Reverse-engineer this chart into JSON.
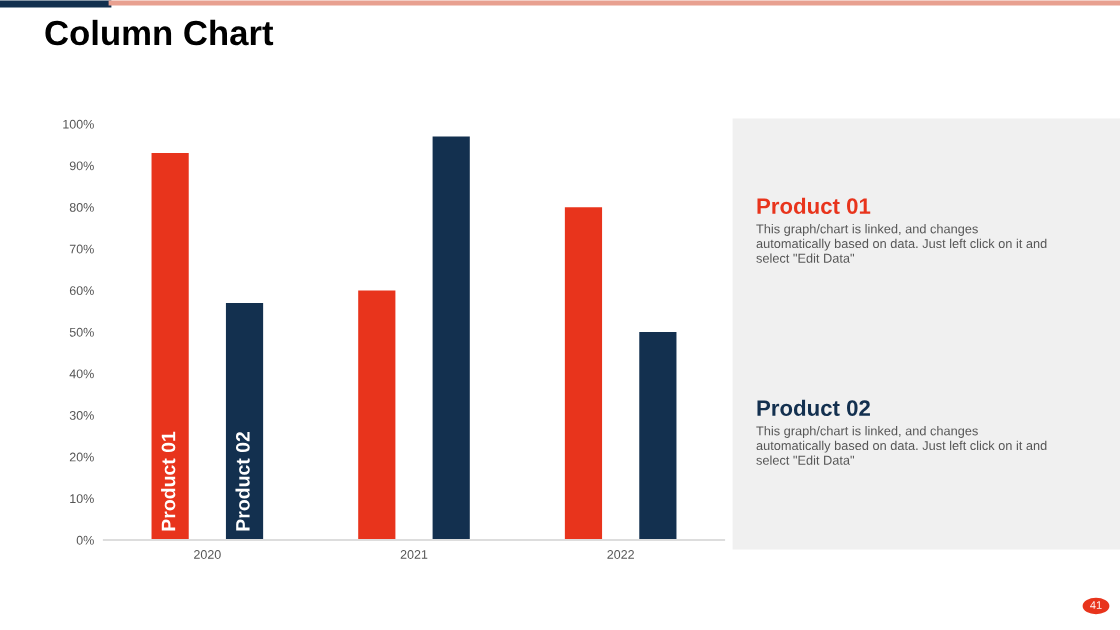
{
  "chart_data": {
    "type": "bar",
    "title": "Column Chart",
    "categories": [
      "2020",
      "2021",
      "2022"
    ],
    "series": [
      {
        "name": "Product 01",
        "color": "#e8341c",
        "values": [
          93,
          60,
          80
        ]
      },
      {
        "name": "Product 02",
        "color": "#13304f",
        "values": [
          57,
          97,
          50
        ]
      }
    ],
    "ylim": [
      0,
      100
    ],
    "yticks": [
      {
        "value": 0,
        "label": "0%"
      },
      {
        "value": 10,
        "label": "10%"
      },
      {
        "value": 20,
        "label": "20%"
      },
      {
        "value": 30,
        "label": "30%"
      },
      {
        "value": 40,
        "label": "40%"
      },
      {
        "value": 50,
        "label": "50%"
      },
      {
        "value": 60,
        "label": "60%"
      },
      {
        "value": 70,
        "label": "70%"
      },
      {
        "value": 80,
        "label": "80%"
      },
      {
        "value": 90,
        "label": "90%"
      },
      {
        "value": 100,
        "label": "100%"
      }
    ],
    "annotations": [
      "Product 01",
      "This graph/chart is linked, and changes\nautomatically based on data. Just left click on it and\nselect \"Edit Data\"",
      "Product 02",
      "This graph/chart is linked, and changes\nautomatically based on data. Just left click on it and\nselect \"Edit Data\"",
      "41"
    ]
  }
}
